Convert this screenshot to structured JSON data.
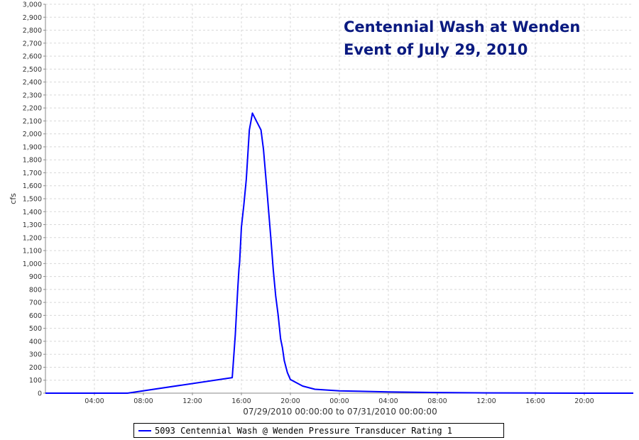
{
  "chart_data": {
    "type": "line",
    "title": "",
    "annotation_lines": [
      "Centennial Wash at Wenden",
      "Event of July 29, 2010"
    ],
    "xlabel": "07/29/2010 00:00:00 to 07/31/2010 00:00:00",
    "ylabel": "cfs",
    "x_unit": "hours since 07/29/2010 00:00",
    "xlim": [
      0,
      48
    ],
    "ylim": [
      0,
      3000
    ],
    "y_tick_step": 100,
    "x_ticks": [
      {
        "x": 4,
        "label": "04:00"
      },
      {
        "x": 8,
        "label": "08:00"
      },
      {
        "x": 12,
        "label": "12:00"
      },
      {
        "x": 16,
        "label": "16:00"
      },
      {
        "x": 20,
        "label": "20:00"
      },
      {
        "x": 24,
        "label": "00:00"
      },
      {
        "x": 28,
        "label": "04:00"
      },
      {
        "x": 32,
        "label": "08:00"
      },
      {
        "x": 36,
        "label": "12:00"
      },
      {
        "x": 40,
        "label": "16:00"
      },
      {
        "x": 44,
        "label": "20:00"
      }
    ],
    "grid": true,
    "legend_position": "bottom",
    "series": [
      {
        "name": "5093 Centennial Wash @ Wenden Pressure Transducer Rating 1",
        "color": "#0000ff",
        "x": [
          0,
          6.7,
          15.25,
          15.5,
          15.7,
          15.8,
          15.85,
          16.0,
          16.2,
          16.4,
          16.65,
          16.9,
          17.6,
          17.8,
          18.1,
          18.4,
          18.6,
          18.8,
          19.0,
          19.2,
          19.35,
          19.5,
          19.75,
          20.0,
          20.5,
          21.0,
          22.0,
          24.0,
          28.0,
          32.0,
          36.0,
          40.0,
          44.0,
          48.0
        ],
        "y": [
          0,
          0,
          120,
          450,
          800,
          960,
          1000,
          1280,
          1450,
          1650,
          2030,
          2160,
          2030,
          1880,
          1550,
          1200,
          950,
          750,
          600,
          420,
          350,
          250,
          160,
          105,
          80,
          55,
          30,
          18,
          10,
          5,
          2,
          1,
          0,
          0
        ]
      }
    ]
  }
}
